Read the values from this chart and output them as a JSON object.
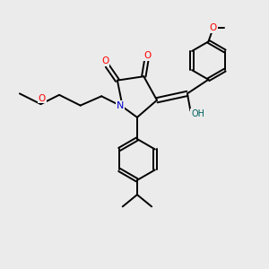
{
  "bg_color": "#ebebeb",
  "atom_colors": {
    "C": "#000000",
    "N": "#0000cc",
    "O": "#ff0000",
    "OH": "#006060"
  },
  "bond_color": "#000000",
  "figsize": [
    3.0,
    3.0
  ],
  "dpi": 100,
  "lw": 1.4,
  "ring_lw": 1.4,
  "fontsize": 7.5
}
